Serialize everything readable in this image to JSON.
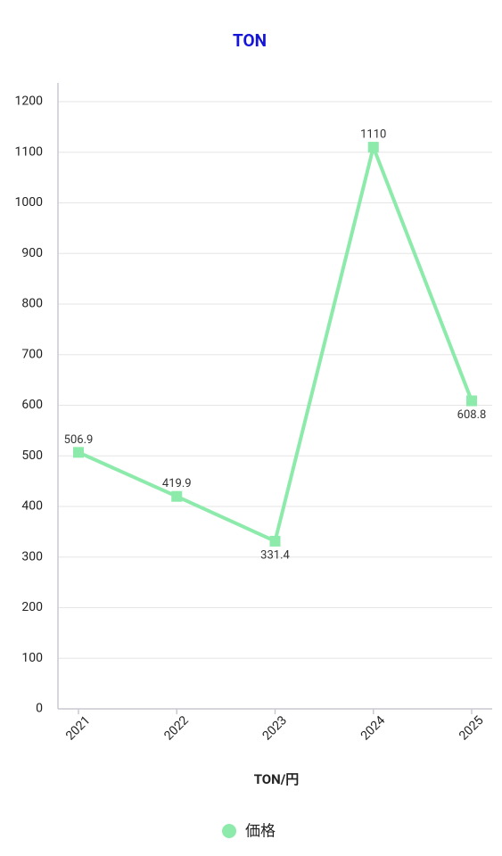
{
  "chart_data": {
    "type": "line",
    "title": "TON",
    "x_label": "TON/円",
    "categories": [
      "2021",
      "2022",
      "2023",
      "2024",
      "2025"
    ],
    "series": [
      {
        "name": "価格",
        "color": "#8ceaaa",
        "values": [
          506.9,
          419.9,
          331.4,
          1110,
          608.8
        ]
      }
    ],
    "ylim": [
      0,
      1200
    ],
    "yticks": [
      0,
      100,
      200,
      300,
      400,
      500,
      600,
      700,
      800,
      900,
      1000,
      1100,
      1200
    ],
    "grid": true,
    "legend": "bottom"
  }
}
